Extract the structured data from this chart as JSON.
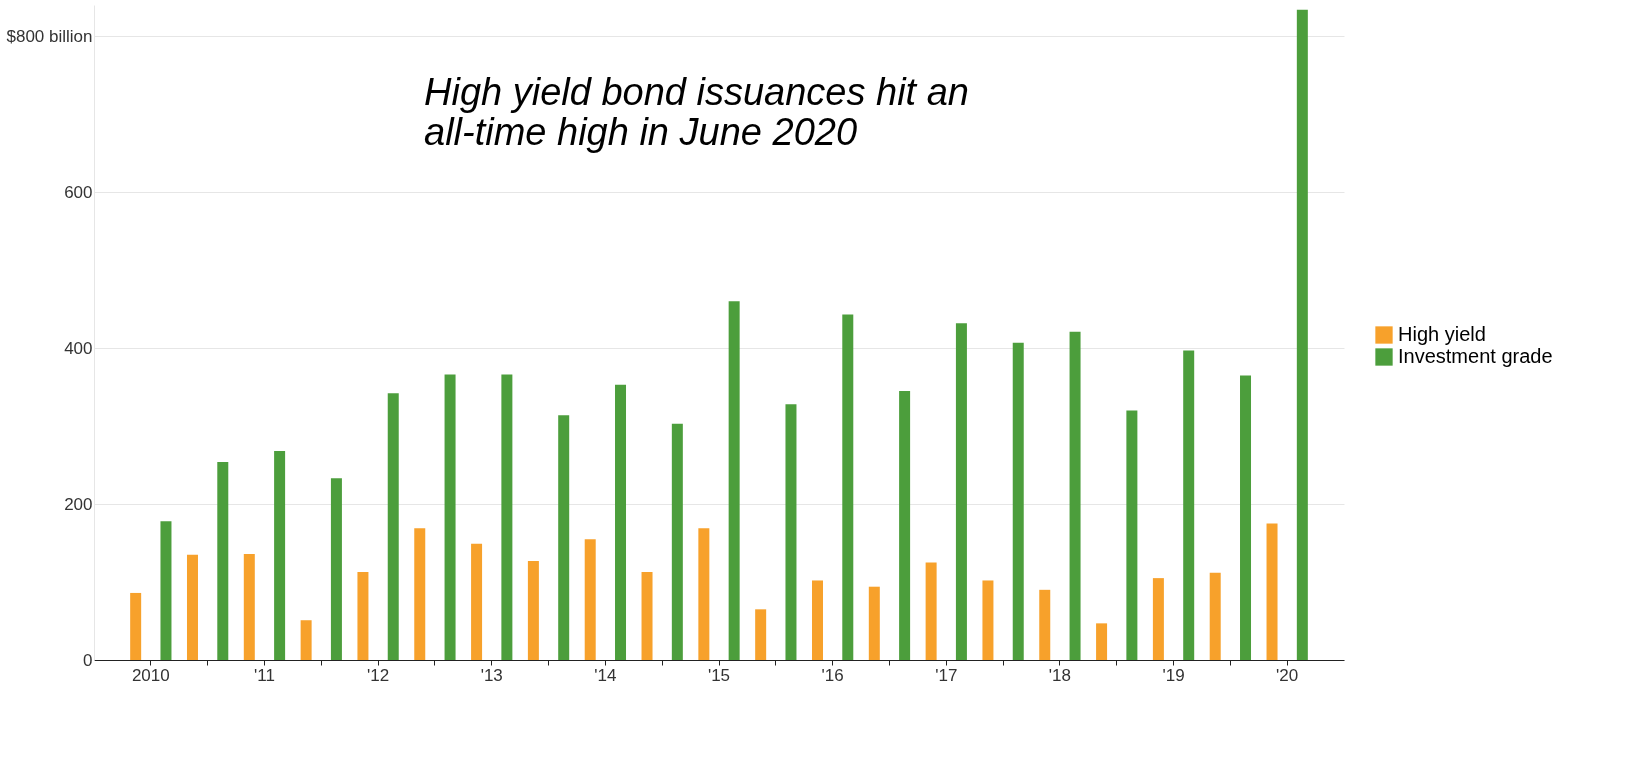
{
  "chart_data": {
    "type": "bar",
    "annotations": [
      "High yield bond issuances hit an all-time high in June 2020"
    ],
    "categories": [
      "2010",
      null,
      "'11",
      null,
      "'12",
      null,
      "'13",
      null,
      "'14",
      null,
      "'15",
      null,
      "'16",
      null,
      "'17",
      null,
      "'18",
      null,
      "'19",
      null,
      "'20"
    ],
    "series": [
      {
        "name": "High yield",
        "color": "#f7a12b",
        "values": [
          86,
          135,
          136,
          51,
          113,
          169,
          149,
          127,
          155,
          113,
          169,
          65,
          102,
          94,
          125,
          102,
          90,
          47,
          105,
          112,
          175
        ]
      },
      {
        "name": "Investment grade",
        "color": "#4c9e3c",
        "values": [
          178,
          254,
          268,
          233,
          342,
          366,
          366,
          314,
          353,
          303,
          460,
          328,
          443,
          345,
          432,
          407,
          421,
          320,
          397,
          365,
          834
        ]
      }
    ],
    "ylim": [
      0,
      840
    ],
    "yticks": [
      0,
      200,
      400,
      600,
      {
        "value": 800,
        "label": "$800 billion"
      }
    ],
    "grid": "y",
    "legend": "right"
  }
}
